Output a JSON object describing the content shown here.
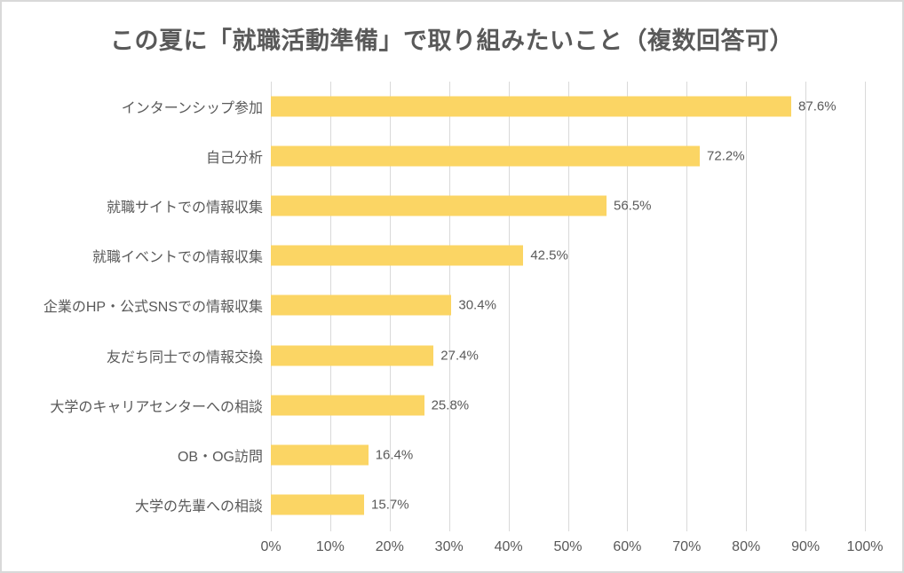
{
  "colors": {
    "bar": "#FBD564",
    "gridline": "#D9D9D9",
    "border": "#D9D9D9",
    "text": "#595959",
    "background": "#FFFFFF"
  },
  "chart_data": {
    "type": "bar",
    "orientation": "horizontal",
    "title": "この夏に「就職活動準備」で取り組みたいこと（複数回答可）",
    "categories": [
      "インターンシップ参加",
      "自己分析",
      "就職サイトでの情報収集",
      "就職イベントでの情報収集",
      "企業のHP・公式SNSでの情報収集",
      "友だち同士での情報交換",
      "大学のキャリアセンターへの相談",
      "OB・OG訪問",
      "大学の先輩への相談"
    ],
    "values": [
      87.6,
      72.2,
      56.5,
      42.5,
      30.4,
      27.4,
      25.8,
      16.4,
      15.7
    ],
    "value_labels": [
      "87.6%",
      "72.2%",
      "56.5%",
      "42.5%",
      "30.4%",
      "27.4%",
      "25.8%",
      "16.4%",
      "15.7%"
    ],
    "xlabel": "",
    "ylabel": "",
    "xlim": [
      0,
      100
    ],
    "x_ticks": [
      "0%",
      "10%",
      "20%",
      "30%",
      "40%",
      "50%",
      "60%",
      "70%",
      "80%",
      "90%",
      "100%"
    ],
    "x_tick_values": [
      0,
      10,
      20,
      30,
      40,
      50,
      60,
      70,
      80,
      90,
      100
    ],
    "grid": true,
    "legend": false
  }
}
